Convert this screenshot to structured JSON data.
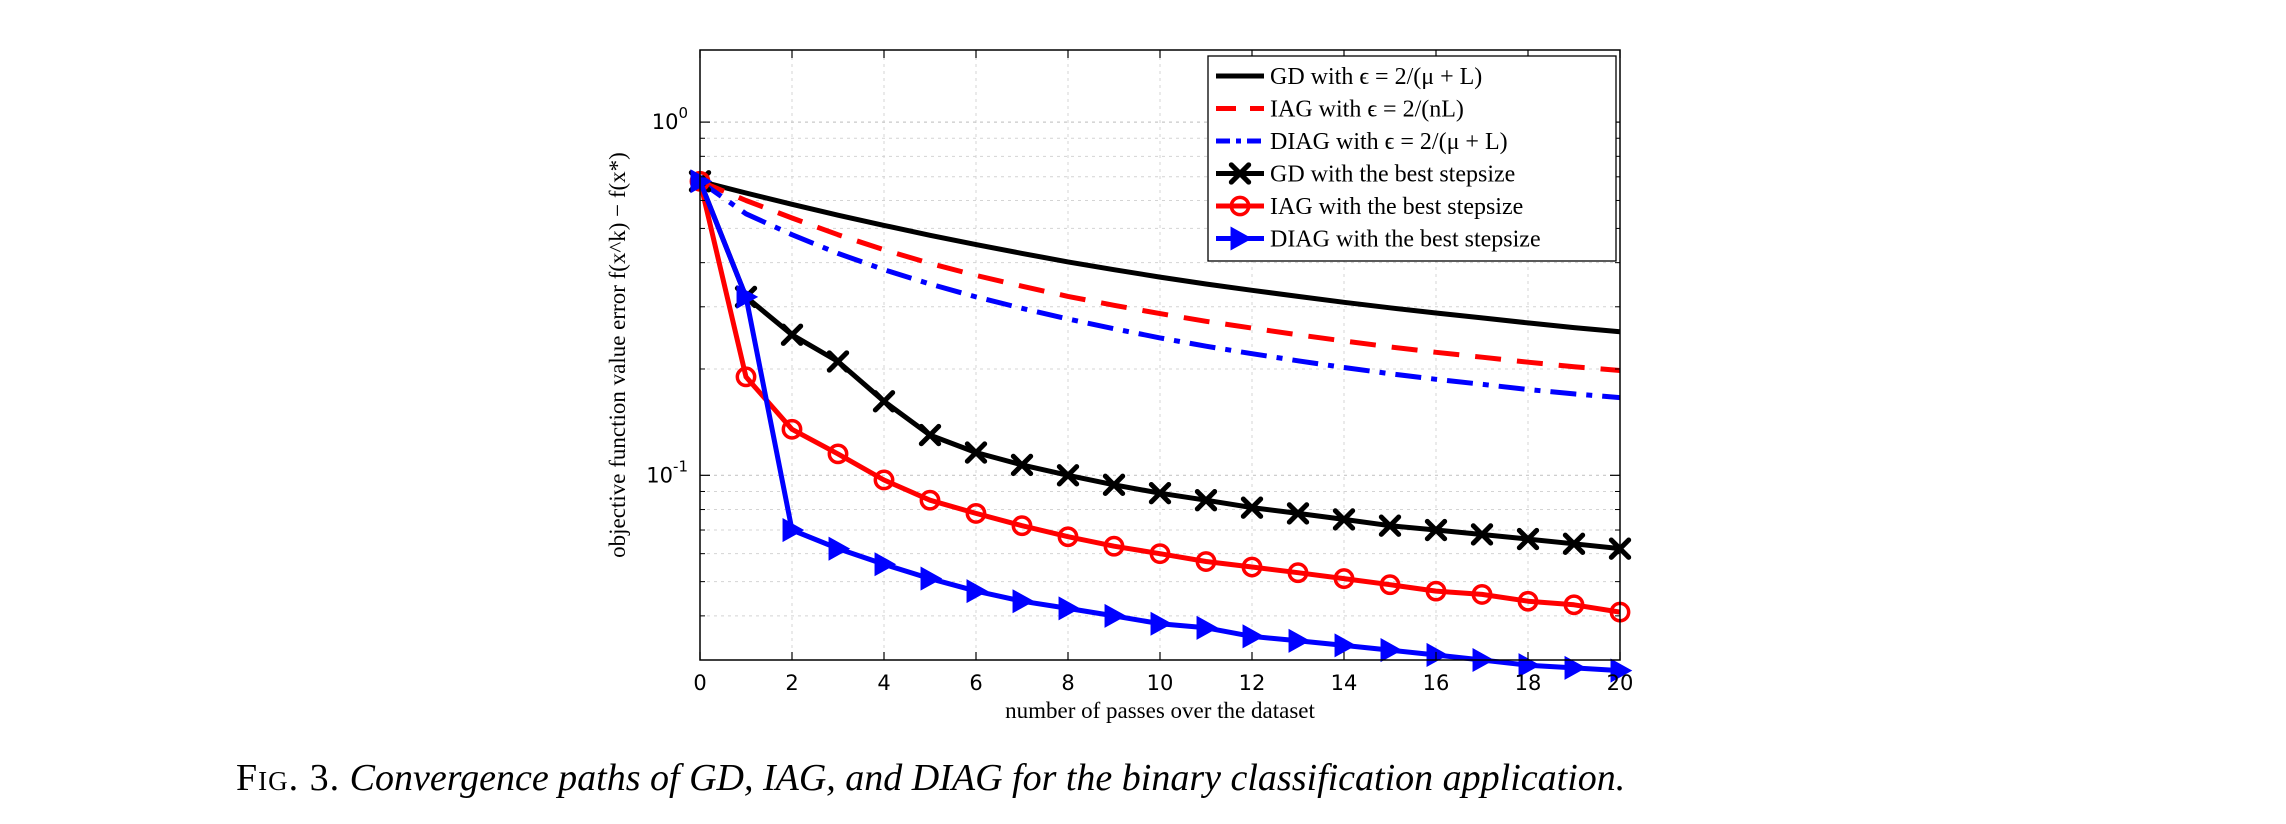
{
  "chart_data": {
    "type": "line",
    "xlabel": "number of passes over the dataset",
    "ylabel": "objective function value error f(x^k) − f(x*)",
    "xscale": "linear",
    "yscale": "log",
    "xlim": [
      0,
      20
    ],
    "ylim": [
      0.03,
      1.6
    ],
    "xticks": [
      "0",
      "2",
      "4",
      "6",
      "8",
      "10",
      "12",
      "14",
      "16",
      "18",
      "20"
    ],
    "yticks": [
      {
        "value": 1.0,
        "base": "10",
        "exp": "0"
      },
      {
        "value": 0.1,
        "base": "10",
        "exp": "-1"
      }
    ],
    "grid": true,
    "legend_position": "top-right",
    "series": [
      {
        "name": "GD with ϵ = 2/(μ + L)",
        "color": "#000000",
        "style": "solid",
        "marker": "none",
        "x": [
          0,
          1,
          2,
          3,
          4,
          5,
          6,
          7,
          8,
          9,
          10,
          11,
          12,
          13,
          14,
          15,
          16,
          17,
          18,
          19,
          20
        ],
        "y": [
          0.68,
          0.63,
          0.585,
          0.545,
          0.51,
          0.478,
          0.45,
          0.425,
          0.402,
          0.382,
          0.364,
          0.348,
          0.334,
          0.321,
          0.309,
          0.298,
          0.288,
          0.279,
          0.27,
          0.262,
          0.255
        ]
      },
      {
        "name": "IAG with ϵ = 2/(nL)",
        "color": "#ff0000",
        "style": "dashed",
        "marker": "none",
        "x": [
          0,
          1,
          2,
          3,
          4,
          5,
          6,
          7,
          8,
          9,
          10,
          11,
          12,
          13,
          14,
          15,
          16,
          17,
          18,
          19,
          20
        ],
        "y": [
          0.68,
          0.6,
          0.535,
          0.48,
          0.435,
          0.398,
          0.368,
          0.343,
          0.321,
          0.303,
          0.287,
          0.273,
          0.261,
          0.25,
          0.24,
          0.231,
          0.223,
          0.216,
          0.209,
          0.203,
          0.198
        ]
      },
      {
        "name": "DIAG with ϵ = 2/(μ + L)",
        "color": "#0000ff",
        "style": "dashdot",
        "marker": "none",
        "x": [
          0,
          1,
          2,
          3,
          4,
          5,
          6,
          7,
          8,
          9,
          10,
          11,
          12,
          13,
          14,
          15,
          16,
          17,
          18,
          19,
          20
        ],
        "y": [
          0.68,
          0.55,
          0.48,
          0.425,
          0.382,
          0.348,
          0.32,
          0.297,
          0.277,
          0.26,
          0.245,
          0.232,
          0.221,
          0.211,
          0.202,
          0.194,
          0.187,
          0.181,
          0.175,
          0.17,
          0.166
        ]
      },
      {
        "name": "GD with the best stepsize",
        "color": "#000000",
        "style": "solid",
        "marker": "x",
        "x": [
          0,
          1,
          2,
          3,
          4,
          5,
          6,
          7,
          8,
          9,
          10,
          11,
          12,
          13,
          14,
          15,
          16,
          17,
          18,
          19,
          20
        ],
        "y": [
          0.68,
          0.32,
          0.25,
          0.21,
          0.162,
          0.13,
          0.116,
          0.107,
          0.1,
          0.094,
          0.089,
          0.085,
          0.081,
          0.078,
          0.075,
          0.072,
          0.07,
          0.068,
          0.066,
          0.064,
          0.062
        ]
      },
      {
        "name": "IAG with the best stepsize",
        "color": "#ff0000",
        "style": "solid",
        "marker": "o",
        "x": [
          0,
          1,
          2,
          3,
          4,
          5,
          6,
          7,
          8,
          9,
          10,
          11,
          12,
          13,
          14,
          15,
          16,
          17,
          18,
          19,
          20
        ],
        "y": [
          0.68,
          0.19,
          0.135,
          0.115,
          0.097,
          0.085,
          0.078,
          0.072,
          0.067,
          0.063,
          0.06,
          0.057,
          0.055,
          0.053,
          0.051,
          0.049,
          0.047,
          0.046,
          0.044,
          0.043,
          0.041
        ]
      },
      {
        "name": "DIAG with the best stepsize",
        "color": "#0000ff",
        "style": "solid",
        "marker": "triangle-right",
        "x": [
          0,
          1,
          2,
          3,
          4,
          5,
          6,
          7,
          8,
          9,
          10,
          11,
          12,
          13,
          14,
          15,
          16,
          17,
          18,
          19,
          20
        ],
        "y": [
          0.68,
          0.32,
          0.07,
          0.062,
          0.056,
          0.051,
          0.047,
          0.044,
          0.042,
          0.04,
          0.038,
          0.037,
          0.035,
          0.034,
          0.033,
          0.032,
          0.031,
          0.03,
          0.029,
          0.0285,
          0.028
        ]
      }
    ]
  },
  "caption": {
    "label": "Fig. 3.",
    "text": "Convergence paths of GD, IAG, and DIAG for the binary classification application."
  }
}
